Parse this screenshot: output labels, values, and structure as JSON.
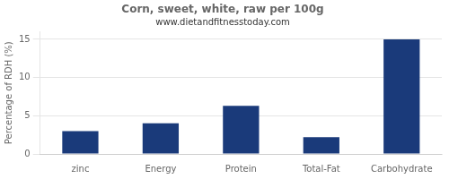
{
  "chart_data": {
    "type": "bar",
    "title": "Corn, sweet, white, raw per 100g",
    "subtitle": "www.dietandfitnesstoday.com",
    "categories": [
      "zinc",
      "Energy",
      "Protein",
      "Total-Fat",
      "Carbohydrate"
    ],
    "values": [
      3.0,
      4.0,
      6.3,
      2.2,
      15.0
    ],
    "color": "#1a3a7a",
    "ylabel": "Percentage of RDH (%)",
    "ylim": [
      0,
      16
    ],
    "yticks": [
      0,
      5,
      10,
      15
    ],
    "grid": true
  }
}
